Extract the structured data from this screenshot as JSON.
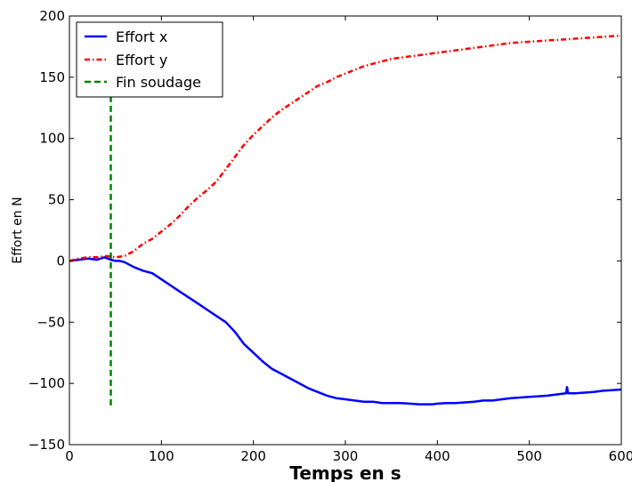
{
  "chart_data": {
    "type": "line",
    "title": "",
    "xlabel": "Temps en s",
    "ylabel": "Effort en N",
    "xlim": [
      0,
      600
    ],
    "ylim": [
      -150,
      200
    ],
    "xticks": [
      0,
      100,
      200,
      300,
      400,
      500,
      600
    ],
    "yticks": [
      -150,
      -100,
      -50,
      0,
      50,
      100,
      150,
      200
    ],
    "grid": false,
    "legend_position": "upper-left",
    "series": [
      {
        "name": "Effort x",
        "color": "#0000ff",
        "style": "solid",
        "x": [
          0,
          10,
          20,
          30,
          38,
          45,
          50,
          55,
          60,
          70,
          80,
          90,
          100,
          110,
          120,
          130,
          140,
          150,
          160,
          170,
          180,
          190,
          200,
          210,
          220,
          230,
          240,
          250,
          260,
          270,
          280,
          290,
          300,
          310,
          320,
          330,
          340,
          350,
          360,
          370,
          380,
          390,
          395,
          400,
          410,
          420,
          430,
          440,
          450,
          460,
          470,
          480,
          490,
          500,
          510,
          520,
          530,
          540,
          541,
          542,
          543,
          550,
          560,
          570,
          580,
          590,
          600
        ],
        "y": [
          0,
          1,
          2,
          1,
          3,
          1,
          0,
          0,
          -1,
          -5,
          -8,
          -10,
          -15,
          -20,
          -25,
          -30,
          -35,
          -40,
          -45,
          -50,
          -58,
          -68,
          -75,
          -82,
          -88,
          -92,
          -96,
          -100,
          -104,
          -107,
          -110,
          -112,
          -113,
          -114,
          -115,
          -115,
          -116,
          -116,
          -116,
          -116.5,
          -117,
          -117,
          -117,
          -116.5,
          -116,
          -116,
          -115.5,
          -115,
          -114,
          -114,
          -113,
          -112,
          -111.5,
          -111,
          -110.5,
          -110,
          -109,
          -108,
          -103,
          -108,
          -108,
          -108,
          -107.5,
          -107,
          -106,
          -105.5,
          -105
        ]
      },
      {
        "name": "Effort y",
        "color": "#ff0000",
        "style": "dash-dot",
        "x": [
          0,
          10,
          20,
          30,
          40,
          50,
          60,
          70,
          80,
          90,
          100,
          110,
          120,
          130,
          140,
          150,
          160,
          170,
          180,
          190,
          200,
          210,
          220,
          230,
          240,
          250,
          260,
          270,
          280,
          290,
          300,
          310,
          320,
          330,
          340,
          350,
          360,
          370,
          380,
          390,
          400,
          420,
          440,
          460,
          480,
          500,
          520,
          540,
          560,
          580,
          600
        ],
        "y": [
          0,
          2,
          3,
          3,
          4,
          3,
          4,
          8,
          14,
          18,
          24,
          30,
          37,
          45,
          52,
          58,
          65,
          75,
          85,
          95,
          103,
          110,
          117,
          123,
          128,
          133,
          138,
          143,
          146,
          150,
          153,
          156,
          159,
          161,
          163,
          165,
          166,
          167,
          168,
          169,
          170,
          172,
          174,
          176,
          178,
          179,
          180,
          181,
          182,
          183,
          184
        ]
      },
      {
        "name": "Fin soudage",
        "color": "#008000",
        "style": "dashed",
        "x": [
          45,
          45
        ],
        "y": [
          -118,
          138
        ]
      }
    ]
  }
}
